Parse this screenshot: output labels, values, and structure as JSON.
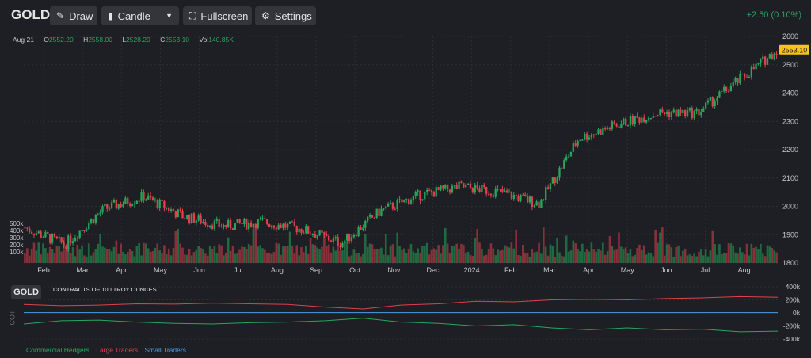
{
  "toolbar": {
    "symbol": "GOLD",
    "draw_label": "Draw",
    "chart_type_label": "Candle",
    "fullscreen_label": "Fullscreen",
    "settings_label": "Settings",
    "change_text": "+2.50 (0.10%)"
  },
  "ohlc": {
    "date": "Aug 21",
    "open_label": "O",
    "open": "2552.20",
    "high_label": "H",
    "high": "2558.00",
    "low_label": "L",
    "low": "2528.20",
    "close_label": "C",
    "close": "2553.10",
    "vol_label": "Vol",
    "vol": "140.85K"
  },
  "last_price_badge": "2553.10",
  "colors": {
    "up": "#26a65b",
    "down": "#e0404c",
    "badge": "#f5c518",
    "small_traders": "#4a9ee8"
  },
  "chart_data": [
    {
      "type": "candlestick",
      "x_ticks": [
        "Feb",
        "Mar",
        "Apr",
        "May",
        "Jun",
        "Jul",
        "Aug",
        "Sep",
        "Oct",
        "Nov",
        "Dec",
        "2024",
        "Feb",
        "Mar",
        "Apr",
        "May",
        "Jun",
        "Jul",
        "Aug"
      ],
      "y_ticks": [
        1800,
        1900,
        2000,
        2100,
        2200,
        2300,
        2400,
        2500,
        2600
      ],
      "ylim": [
        1800,
        2600
      ],
      "volume_ticks": [
        "500k",
        "400k",
        "300k",
        "200k",
        "100k"
      ],
      "last_price": 2553.1,
      "monthly_close": [
        1925,
        1865,
        1990,
        2035,
        1965,
        1930,
        1945,
        1920,
        1870,
        1985,
        2040,
        2070,
        2050,
        2010,
        2240,
        2290,
        2330,
        2330,
        2440,
        2550
      ]
    },
    {
      "type": "line",
      "title": "CONTRACTS OF 100 TROY OUNCES",
      "y_ticks": [
        "400k",
        "200k",
        "0k",
        "-200k",
        "-400k"
      ],
      "ylim": [
        -400000,
        400000
      ],
      "series": [
        {
          "name": "Commercial Hedgers",
          "values": [
            -170,
            -120,
            -110,
            -140,
            -160,
            -170,
            -150,
            -140,
            -120,
            -80,
            -140,
            -160,
            -200,
            -180,
            -230,
            -260,
            -230,
            -260,
            -250,
            -290,
            -280
          ]
        },
        {
          "name": "Large Traders",
          "values": [
            130,
            110,
            120,
            140,
            135,
            150,
            140,
            130,
            90,
            60,
            120,
            140,
            180,
            170,
            200,
            210,
            200,
            220,
            230,
            250,
            240
          ]
        },
        {
          "name": "Small Traders",
          "values": [
            5,
            5,
            5,
            5,
            5,
            5,
            5,
            5,
            5,
            5,
            5,
            5,
            5,
            5,
            5,
            5,
            5,
            5,
            5,
            5,
            5
          ]
        }
      ]
    }
  ],
  "cot": {
    "tag": "GOLD",
    "axis_label": "COT",
    "legend": [
      "Commercial Hedgers",
      "Large Traders",
      "Small Traders"
    ]
  }
}
